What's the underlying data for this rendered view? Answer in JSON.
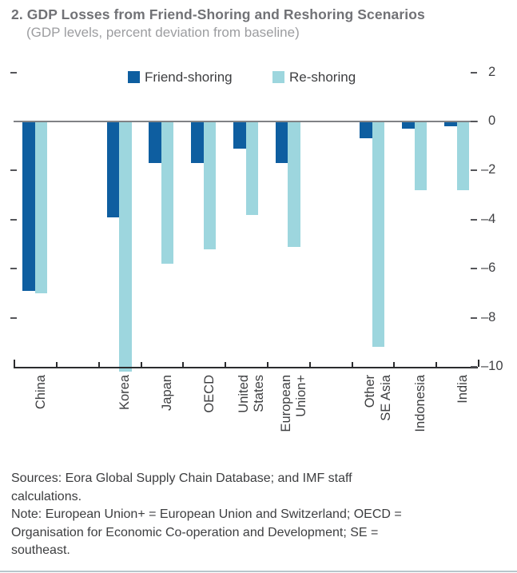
{
  "figure": {
    "title": "2. GDP Losses from Friend-Shoring and Reshoring Scenarios",
    "subtitle": "(GDP levels, percent deviation from baseline)"
  },
  "legend": {
    "items": [
      {
        "label": "Friend-shoring",
        "color": "#0e5ea0"
      },
      {
        "label": "Re-shoring",
        "color": "#9dd6de"
      }
    ]
  },
  "notes": {
    "lines": [
      "Sources: Eora Global Supply Chain Database; and IMF staff",
      "calculations.",
      "Note: European Union+ = European Union and Switzerland; OECD =",
      "Organisation for Economic Co-operation and Development; SE =",
      "southeast."
    ]
  },
  "chart_data": {
    "type": "bar",
    "title": "2. GDP Losses from Friend-Shoring and Reshoring Scenarios",
    "subtitle": "(GDP levels, percent deviation from baseline)",
    "ylabel": "",
    "xlabel": "",
    "ylim": [
      -10,
      2
    ],
    "yticks": [
      2,
      0,
      -2,
      -4,
      -6,
      -8,
      -10
    ],
    "ytick_labels": [
      "2",
      "0",
      "–2",
      "–4",
      "–6",
      "–8",
      "–10"
    ],
    "grid": false,
    "legend_position": "top-center",
    "axis_labels_side": "right",
    "categories": [
      {
        "label": "China",
        "lines": [
          "China"
        ],
        "slot": 0
      },
      {
        "label": "Korea",
        "lines": [
          "Korea"
        ],
        "slot": 2
      },
      {
        "label": "Japan",
        "lines": [
          "Japan"
        ],
        "slot": 3
      },
      {
        "label": "OECD",
        "lines": [
          "OECD"
        ],
        "slot": 4
      },
      {
        "label": "United States",
        "lines": [
          "United",
          "States"
        ],
        "slot": 5
      },
      {
        "label": "European Union+",
        "lines": [
          "European",
          "Union+"
        ],
        "slot": 6
      },
      {
        "label": "Other SE Asia",
        "lines": [
          "Other",
          "SE Asia"
        ],
        "slot": 8
      },
      {
        "label": "Indonesia",
        "lines": [
          "Indonesia"
        ],
        "slot": 9
      },
      {
        "label": "India",
        "lines": [
          "India"
        ],
        "slot": 10
      }
    ],
    "series": [
      {
        "name": "Friend-shoring",
        "color": "#0e5ea0",
        "values": [
          -6.9,
          -3.9,
          -1.7,
          -1.7,
          -1.1,
          -1.7,
          -0.7,
          -0.3,
          -0.2
        ]
      },
      {
        "name": "Re-shoring",
        "color": "#9dd6de",
        "values": [
          -7.0,
          -10.2,
          -5.8,
          -5.2,
          -3.8,
          -5.1,
          -9.2,
          -2.8,
          -2.8
        ]
      }
    ]
  }
}
